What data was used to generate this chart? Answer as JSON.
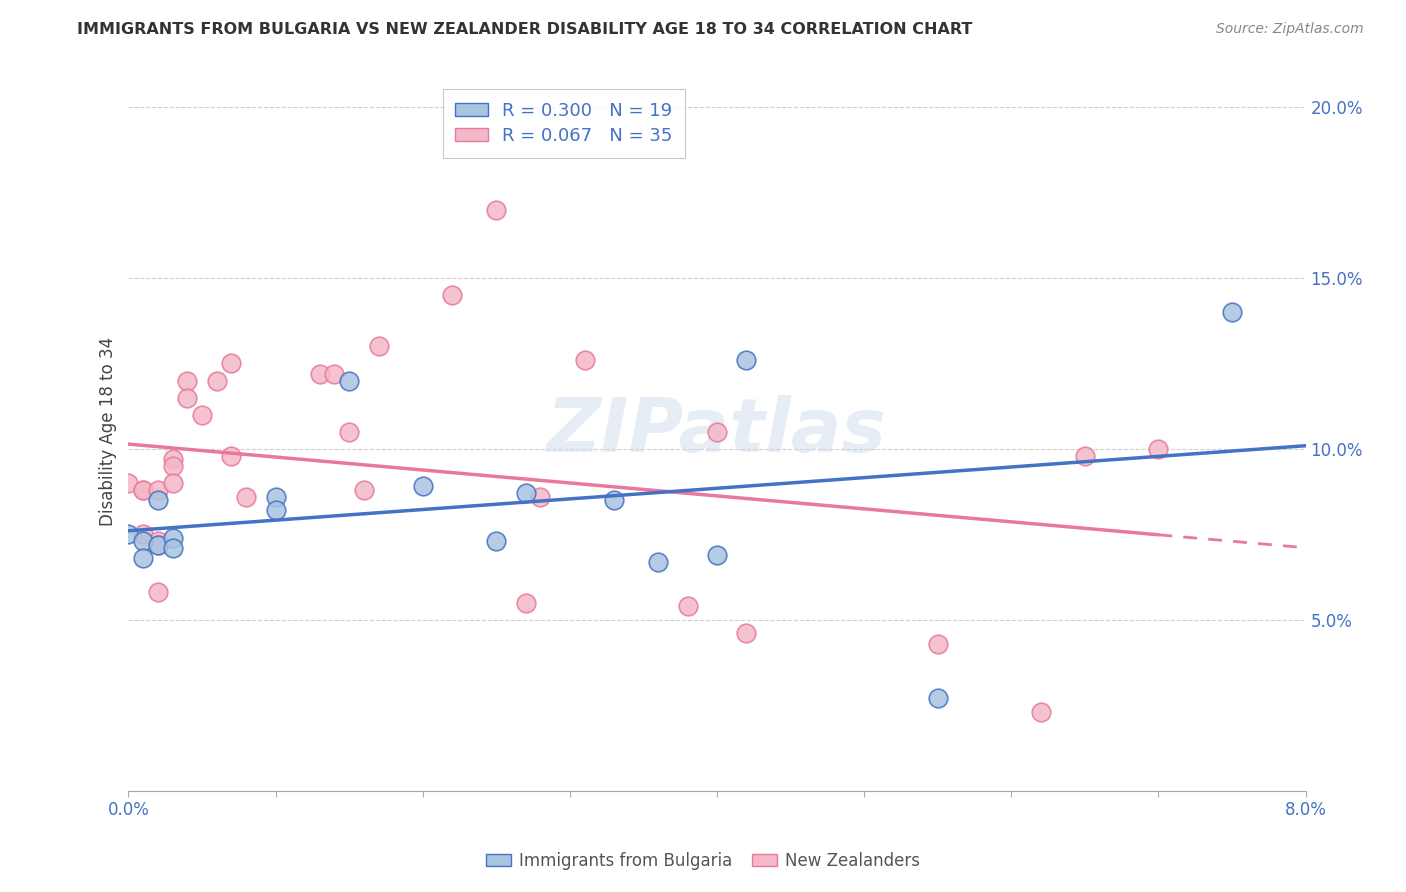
{
  "title": "IMMIGRANTS FROM BULGARIA VS NEW ZEALANDER DISABILITY AGE 18 TO 34 CORRELATION CHART",
  "source": "Source: ZipAtlas.com",
  "ylabel": "Disability Age 18 to 34",
  "xlim": [
    0.0,
    0.08
  ],
  "ylim": [
    0.0,
    0.21
  ],
  "xticks": [
    0.0,
    0.01,
    0.02,
    0.03,
    0.04,
    0.05,
    0.06,
    0.07,
    0.08
  ],
  "xticklabels": [
    "0.0%",
    "",
    "",
    "",
    "",
    "",
    "",
    "",
    "8.0%"
  ],
  "yticks": [
    0.05,
    0.1,
    0.15,
    0.2
  ],
  "yticklabels": [
    "5.0%",
    "10.0%",
    "15.0%",
    "20.0%"
  ],
  "bulgaria_color": "#a8c4e0",
  "nz_color": "#f4b8c8",
  "bulgaria_line_color": "#4472c4",
  "nz_line_color": "#e8799a",
  "R_bulgaria": 0.3,
  "N_bulgaria": 19,
  "R_nz": 0.067,
  "N_nz": 35,
  "watermark": "ZIPatlas",
  "bulgaria_points_x": [
    0.0,
    0.001,
    0.001,
    0.002,
    0.002,
    0.003,
    0.003,
    0.01,
    0.01,
    0.015,
    0.02,
    0.025,
    0.027,
    0.033,
    0.036,
    0.04,
    0.042,
    0.055,
    0.075
  ],
  "bulgaria_points_y": [
    0.075,
    0.073,
    0.068,
    0.085,
    0.072,
    0.074,
    0.071,
    0.086,
    0.082,
    0.12,
    0.089,
    0.073,
    0.087,
    0.085,
    0.067,
    0.069,
    0.126,
    0.027,
    0.14
  ],
  "nz_points_x": [
    0.0,
    0.001,
    0.001,
    0.001,
    0.002,
    0.002,
    0.002,
    0.002,
    0.003,
    0.003,
    0.003,
    0.004,
    0.004,
    0.005,
    0.006,
    0.007,
    0.007,
    0.008,
    0.013,
    0.014,
    0.015,
    0.016,
    0.017,
    0.022,
    0.025,
    0.027,
    0.028,
    0.031,
    0.038,
    0.04,
    0.042,
    0.055,
    0.062,
    0.065,
    0.07
  ],
  "nz_points_y": [
    0.09,
    0.088,
    0.088,
    0.075,
    0.088,
    0.073,
    0.072,
    0.058,
    0.097,
    0.095,
    0.09,
    0.12,
    0.115,
    0.11,
    0.12,
    0.125,
    0.098,
    0.086,
    0.122,
    0.122,
    0.105,
    0.088,
    0.13,
    0.145,
    0.17,
    0.055,
    0.086,
    0.126,
    0.054,
    0.105,
    0.046,
    0.043,
    0.023,
    0.098,
    0.1
  ],
  "background_color": "#ffffff",
  "grid_color": "#d0d0d0"
}
